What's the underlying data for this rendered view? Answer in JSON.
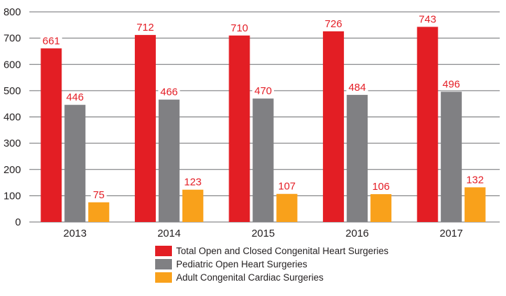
{
  "chart_data": {
    "type": "bar",
    "title": "",
    "xlabel": "",
    "ylabel": "",
    "categories": [
      "2013",
      "2014",
      "2015",
      "2016",
      "2017"
    ],
    "series": [
      {
        "name": "Total Open and Closed Congenital Heart Surgeries",
        "color": "#e31e24",
        "values": [
          661,
          712,
          710,
          726,
          743
        ]
      },
      {
        "name": "Pediatric Open Heart Surgeries",
        "color": "#808083",
        "values": [
          446,
          466,
          470,
          484,
          496
        ]
      },
      {
        "name": "Adult Congenital Cardiac Surgeries",
        "color": "#f9a11b",
        "values": [
          75,
          123,
          107,
          106,
          132
        ]
      }
    ],
    "ylim": [
      0,
      800
    ],
    "yticks": [
      0,
      100,
      200,
      300,
      400,
      500,
      600,
      700,
      800
    ],
    "grid": true,
    "data_labels": true,
    "data_label_color": "#e41e26",
    "legend_position": "bottom-center"
  }
}
